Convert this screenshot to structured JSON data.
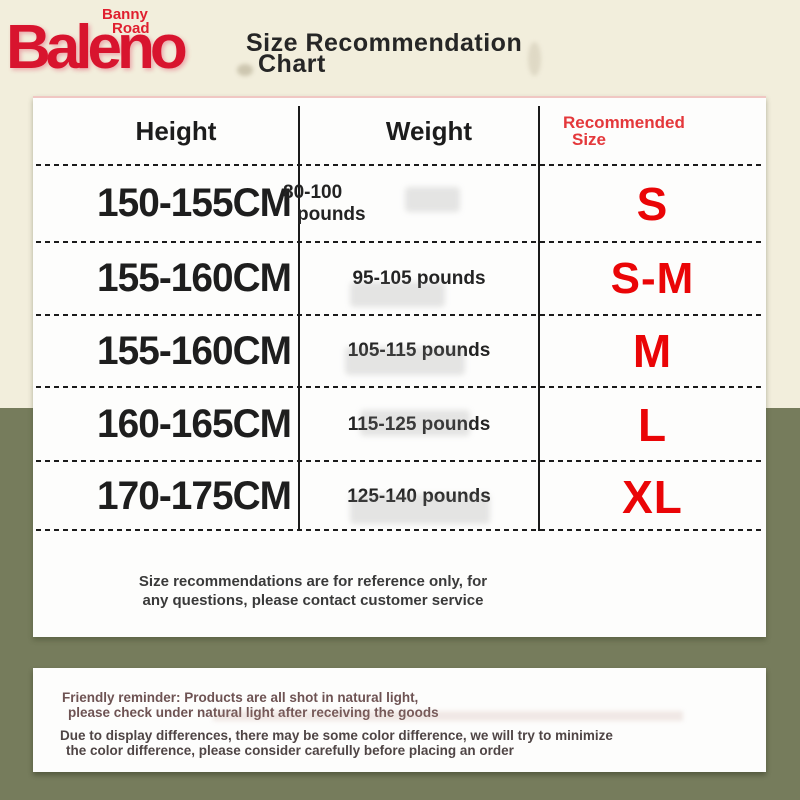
{
  "brand": {
    "logo": "Baleno",
    "sub_line1": "Banny",
    "sub_line2": "Road"
  },
  "header": {
    "title_line1": "Size Recommendation",
    "title_line2": "Chart"
  },
  "table": {
    "headers": {
      "height": "Height",
      "weight": "Weight",
      "size_line1": "Recommended",
      "size_line2": "Size"
    },
    "rows": [
      {
        "height": "150-155CM",
        "weight_line1": "80-100",
        "weight_line2": "pounds",
        "size": "S"
      },
      {
        "height": "155-160CM",
        "weight": "95-105 pounds",
        "size": "S-M"
      },
      {
        "height": "155-160CM",
        "weight": "105-115 pounds",
        "size": "M"
      },
      {
        "height": "160-165CM",
        "weight": "115-125 pounds",
        "size": "L"
      },
      {
        "height": "170-175CM",
        "weight": "125-140 pounds",
        "size": "XL"
      }
    ],
    "note_line1": "Size recommendations are for reference only, for",
    "note_line2": "any questions, please contact customer service"
  },
  "reminder": {
    "para1_line1": "Friendly reminder: Products are all shot in natural light,",
    "para1_line2": "please check under natural light after receiving the goods",
    "para2_line1": "Due to display differences, there may be some color difference, we will try to minimize",
    "para2_line2": "the color difference, please consider carefully before placing an order"
  },
  "colors": {
    "background_top": "#f2eedc",
    "background_bottom": "#767c5c",
    "panel": "#fdfdfc",
    "brand_red": "#d8142e",
    "size_red": "#ea0507",
    "header_red": "#e4383b",
    "text_dark": "#1e1e1e"
  },
  "chart_data": {
    "type": "table",
    "title": "Size Recommendation Chart",
    "columns": [
      "Height",
      "Weight",
      "Recommended Size"
    ],
    "rows": [
      [
        "150-155CM",
        "80-100 pounds",
        "S"
      ],
      [
        "155-160CM",
        "95-105 pounds",
        "S-M"
      ],
      [
        "155-160CM",
        "105-115 pounds",
        "M"
      ],
      [
        "160-165CM",
        "115-125 pounds",
        "L"
      ],
      [
        "170-175CM",
        "125-140 pounds",
        "XL"
      ]
    ],
    "footnote": "Size recommendations are for reference only, for any questions, please contact customer service"
  }
}
